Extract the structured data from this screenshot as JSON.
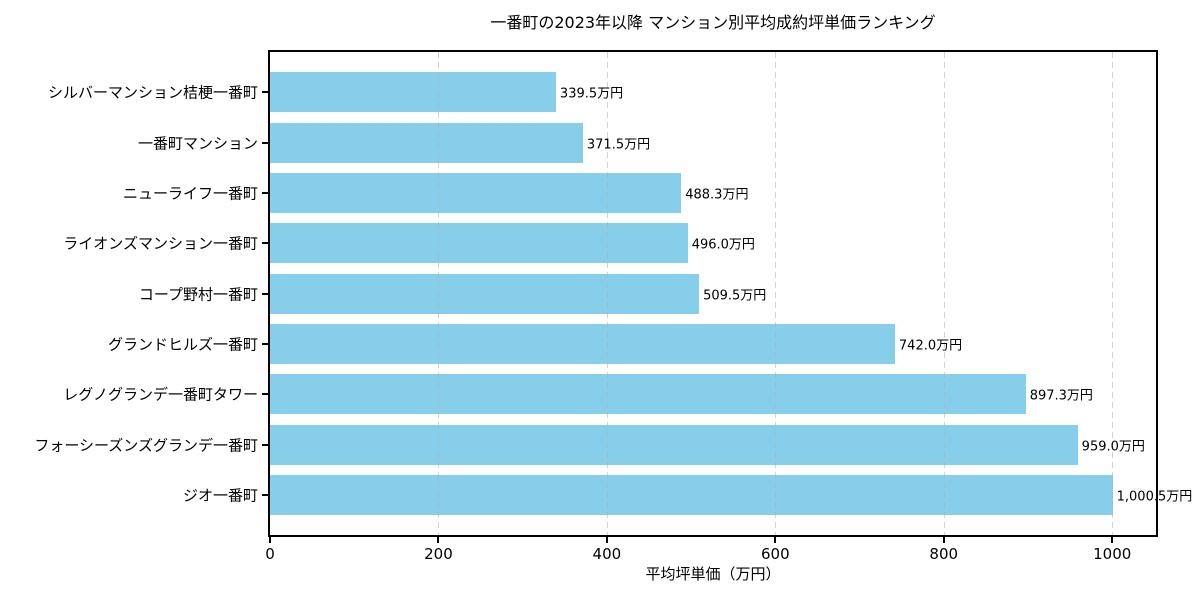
{
  "chart_data": {
    "type": "bar",
    "orientation": "horizontal",
    "title": "一番町の2023年以降 マンション別平均成約坪単価ランキング",
    "xlabel": "平均坪単価（万円）",
    "ylabel": "",
    "categories": [
      "シルバーマンション桔梗一番町",
      "一番町マンション",
      "ニューライフ一番町",
      "ライオンズマンション一番町",
      "コープ野村一番町",
      "グランドヒルズ一番町",
      "レグノグランデ一番町タワー",
      "フォーシーズンズグランデ一番町",
      "ジオ一番町"
    ],
    "values": [
      339.5,
      371.5,
      488.3,
      496.0,
      509.5,
      742.0,
      897.3,
      959.0,
      1000.5
    ],
    "value_labels": [
      "339.5万円",
      "371.5万円",
      "488.3万円",
      "496.0万円",
      "509.5万円",
      "742.0万円",
      "897.3万円",
      "959.0万円",
      "1,000.5万円"
    ],
    "x_ticks": [
      0,
      200,
      400,
      600,
      800,
      1000
    ],
    "x_tick_labels": [
      "0",
      "200",
      "400",
      "600",
      "800",
      "1000"
    ],
    "xlim": [
      0,
      1052
    ],
    "bar_color": "#87CEEB",
    "grid": "vertical dashed",
    "grid_color": "#cccccc",
    "spine_color": "#000000",
    "text_color": "#000000",
    "background_color": "#ffffff",
    "legend": "none"
  }
}
